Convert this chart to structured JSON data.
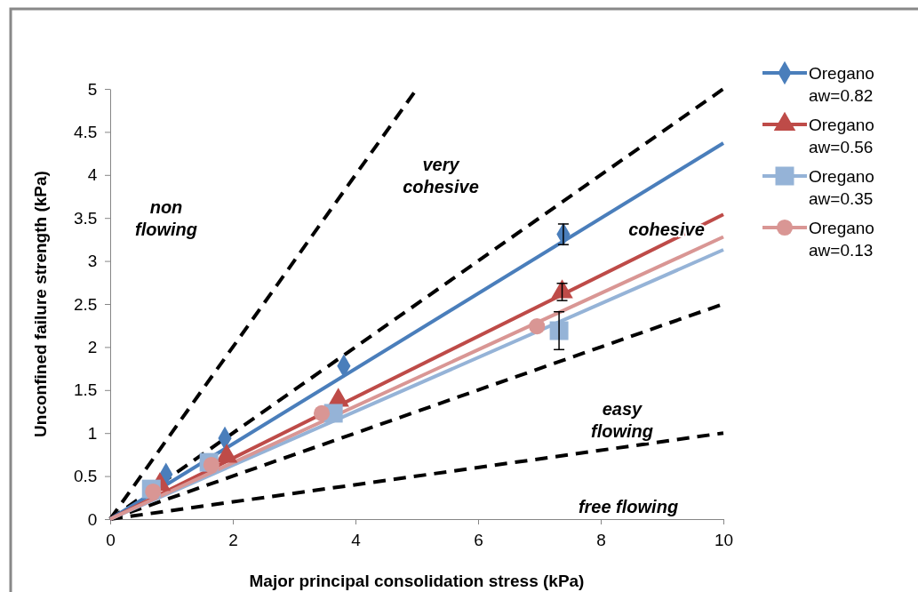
{
  "chart_data": {
    "type": "line",
    "xlabel": "Major principal consolidation stress (kPa)",
    "ylabel": "Unconfined failure strength (kPa)",
    "xlim": [
      0,
      10
    ],
    "xticks": [
      0,
      2,
      4,
      6,
      8,
      10
    ],
    "ylim": [
      0,
      5
    ],
    "yticks": [
      0,
      0.5,
      1,
      1.5,
      2,
      2.5,
      3,
      3.5,
      4,
      4.5,
      5
    ],
    "grid": false,
    "legend": "right",
    "series": [
      {
        "x": [
          0,
          5
        ],
        "values": [
          0,
          5
        ],
        "color": "#000000",
        "line_style": "dashed",
        "marker": "none"
      },
      {
        "type": "line",
        "x": [
          0,
          10
        ],
        "values": [
          0,
          5
        ],
        "color": "#000000",
        "line_style": "dashed",
        "marker": "none"
      },
      {
        "type": "line",
        "x": [
          0,
          10
        ],
        "values": [
          0,
          2.5
        ],
        "color": "#000000",
        "line_style": "dashed",
        "marker": "none"
      },
      {
        "type": "line",
        "x": [
          0,
          10
        ],
        "values": [
          0,
          1
        ],
        "color": "#000000",
        "line_style": "dashed",
        "marker": "none"
      },
      {
        "type": "line",
        "x": [
          0,
          10
        ],
        "values": [
          0,
          4.37
        ],
        "color": "#4a7ebb",
        "line_style": "solid",
        "marker": "none"
      },
      {
        "type": "line",
        "x": [
          0,
          10
        ],
        "values": [
          0,
          3.54
        ],
        "color": "#be4b48",
        "line_style": "solid",
        "marker": "none"
      },
      {
        "type": "line",
        "x": [
          0,
          10
        ],
        "values": [
          0,
          3.13
        ],
        "color": "#95b3d7",
        "line_style": "solid",
        "marker": "none"
      },
      {
        "type": "line",
        "x": [
          0,
          10
        ],
        "values": [
          0,
          3.28
        ],
        "color": "#d99694",
        "line_style": "solid",
        "marker": "none"
      },
      {
        "type": "scatter",
        "name": "Oregano aw=0.82",
        "x": [
          0.91,
          1.87,
          3.81,
          7.39
        ],
        "values": [
          0.52,
          0.94,
          1.78,
          3.31
        ],
        "errors": [
          null,
          null,
          null,
          0.12
        ],
        "color": "#4a7ebb",
        "marker": "diamond"
      },
      {
        "type": "scatter",
        "name": "Oregano aw=0.56",
        "x": [
          0.81,
          1.9,
          3.72,
          7.37
        ],
        "values": [
          0.4,
          0.73,
          1.38,
          2.64
        ],
        "errors": [
          null,
          null,
          null,
          0.1
        ],
        "color": "#be4b48",
        "marker": "triangle"
      },
      {
        "type": "scatter",
        "name": "Oregano aw=0.35",
        "x": [
          0.67,
          1.61,
          3.64,
          7.32
        ],
        "values": [
          0.35,
          0.66,
          1.23,
          2.19
        ],
        "errors": [
          null,
          null,
          null,
          0.22
        ],
        "color": "#95b3d7",
        "marker": "square"
      },
      {
        "type": "scatter",
        "name": "Oregano aw=0.13",
        "x": [
          0.7,
          1.65,
          3.45,
          6.96
        ],
        "values": [
          0.32,
          0.63,
          1.23,
          2.24
        ],
        "color": "#d99694",
        "marker": "circle"
      }
    ],
    "annotations": [
      "non\nflowing",
      "very\ncohesive",
      "cohesive",
      "easy\nflowing",
      "free flowing"
    ]
  }
}
